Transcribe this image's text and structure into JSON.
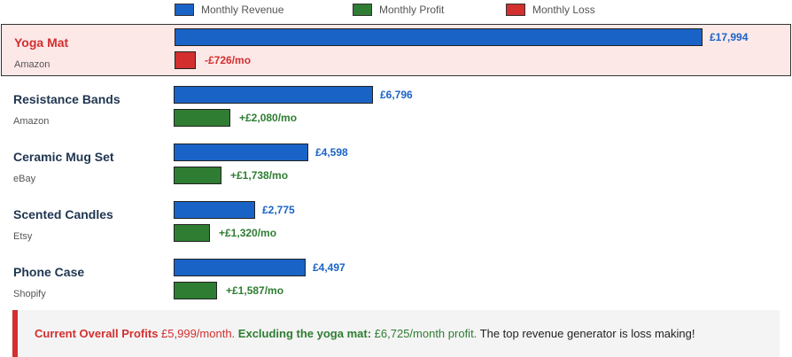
{
  "legend": [
    {
      "label": "Monthly Revenue",
      "color": "#1a63c6"
    },
    {
      "label": "Monthly Profit",
      "color": "#2e7d32"
    },
    {
      "label": "Monthly Loss",
      "color": "#d32f2f"
    }
  ],
  "chart_data": {
    "type": "bar",
    "orientation": "horizontal",
    "categories": [
      "Yoga Mat",
      "Resistance Bands",
      "Ceramic Mug Set",
      "Scented Candles",
      "Phone Case"
    ],
    "marketplaces": [
      "Amazon",
      "Amazon",
      "eBay",
      "Etsy",
      "Shopify"
    ],
    "series": [
      {
        "name": "Monthly Revenue",
        "values": [
          17994,
          6796,
          4598,
          2775,
          4497
        ],
        "labels": [
          "£17,994",
          "£6,796",
          "£4,598",
          "£2,775",
          "£4,497"
        ]
      },
      {
        "name": "Monthly Profit",
        "values": [
          -726,
          2080,
          1738,
          1320,
          1587
        ],
        "labels": [
          "-£726/mo",
          "+£2,080/mo",
          "+£1,738/mo",
          "+£1,320/mo",
          "+£1,587/mo"
        ]
      }
    ],
    "highlighted": "Yoga Mat",
    "legend_position": "top",
    "grid": false
  },
  "summary": {
    "label1": "Current Overall Profits",
    "value1": " £5,999/month.",
    "label2": "Excluding the yoga mat:",
    "value2": " £6,725/month profit.",
    "tail": " The top revenue generator is loss making!"
  }
}
